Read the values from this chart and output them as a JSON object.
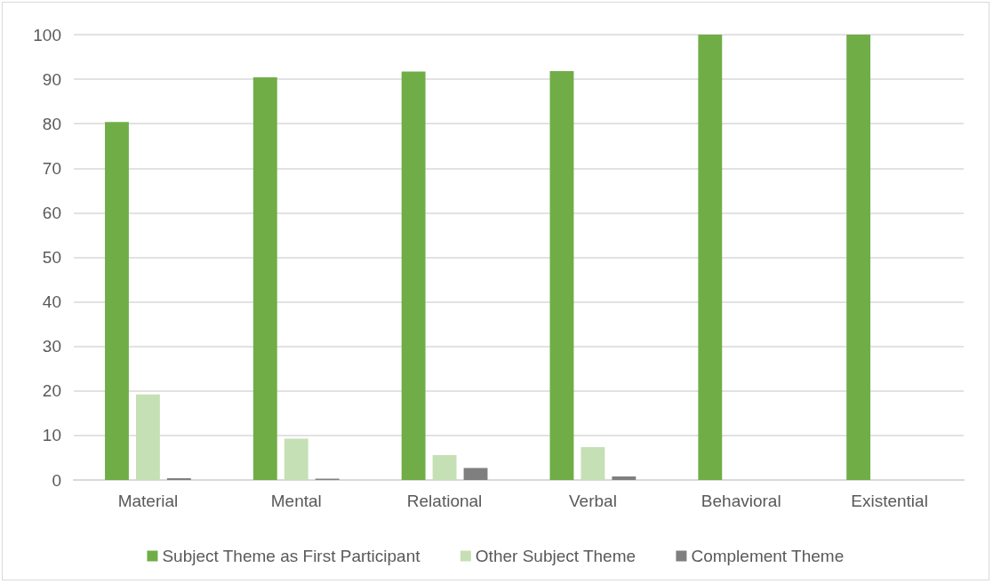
{
  "chart_data": {
    "type": "bar",
    "categories": [
      "Material",
      "Mental",
      "Relational",
      "Verbal",
      "Behavioral",
      "Existential"
    ],
    "series": [
      {
        "name": "Subject Theme as First Participant",
        "color": "#70ad47",
        "values": [
          80.4,
          90.4,
          91.7,
          91.8,
          100,
          100
        ]
      },
      {
        "name": "Other Subject Theme",
        "color": "#c5e0b4",
        "values": [
          19.2,
          9.3,
          5.6,
          7.4,
          0,
          0
        ]
      },
      {
        "name": "Complement Theme",
        "color": "#7f7f7f",
        "values": [
          0.4,
          0.3,
          2.7,
          0.8,
          0,
          0
        ]
      }
    ],
    "ylim": [
      0,
      100
    ],
    "yticks": [
      0,
      10,
      20,
      30,
      40,
      50,
      60,
      70,
      80,
      90,
      100
    ],
    "grid": "y",
    "legend": "bottom"
  }
}
